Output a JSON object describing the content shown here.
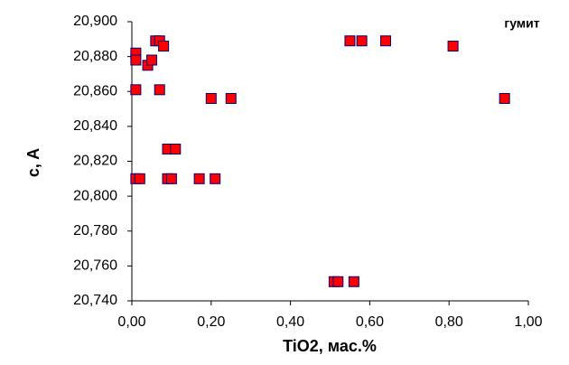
{
  "chart_data": {
    "type": "scatter",
    "annotation": "гумит",
    "x_label": "TiO2, мас.%",
    "y_label": "c, A",
    "marker_color": "#ff0000",
    "marker_edge": "#000080",
    "x": [
      0.01,
      0.01,
      0.01,
      0.01,
      0.02,
      0.04,
      0.05,
      0.06,
      0.07,
      0.08,
      0.07,
      0.09,
      0.11,
      0.09,
      0.1,
      0.17,
      0.21,
      0.2,
      0.25,
      0.51,
      0.52,
      0.56,
      0.55,
      0.58,
      0.64,
      0.81,
      0.94
    ],
    "values": [
      20.882,
      20.878,
      20.861,
      20.81,
      20.81,
      20.875,
      20.878,
      20.889,
      20.889,
      20.886,
      20.861,
      20.827,
      20.827,
      20.81,
      20.81,
      20.81,
      20.81,
      20.856,
      20.856,
      20.751,
      20.751,
      20.751,
      20.889,
      20.889,
      20.889,
      20.886,
      20.856
    ],
    "xlim": [
      0,
      1
    ],
    "ylim": [
      20.74,
      20.9
    ],
    "xticks": [
      {
        "value": 0,
        "label": "0,00"
      },
      {
        "value": 0.2,
        "label": "0,20"
      },
      {
        "value": 0.4,
        "label": "0,40"
      },
      {
        "value": 0.6,
        "label": "0,60"
      },
      {
        "value": 0.8,
        "label": "0,80"
      },
      {
        "value": 1,
        "label": "1,00"
      }
    ],
    "yticks": [
      {
        "value": 20.74,
        "label": "20,740"
      },
      {
        "value": 20.76,
        "label": "20,760"
      },
      {
        "value": 20.78,
        "label": "20,780"
      },
      {
        "value": 20.8,
        "label": "20,800"
      },
      {
        "value": 20.82,
        "label": "20,820"
      },
      {
        "value": 20.84,
        "label": "20,840"
      },
      {
        "value": 20.86,
        "label": "20,860"
      },
      {
        "value": 20.88,
        "label": "20,880"
      },
      {
        "value": 20.9,
        "label": "20,900"
      }
    ],
    "grid": false
  }
}
